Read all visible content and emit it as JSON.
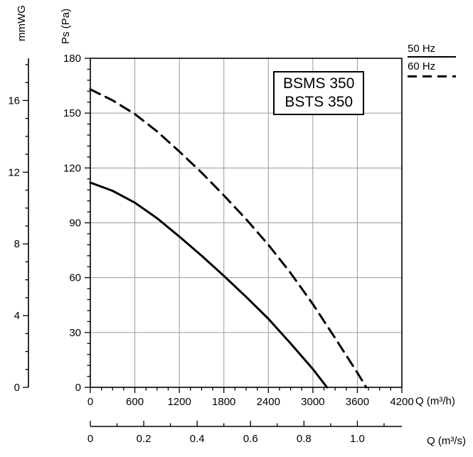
{
  "chart_data": {
    "type": "line",
    "models": [
      "BSMS 350",
      "BSTS 350"
    ],
    "legend": [
      {
        "label": "50 Hz",
        "style": "solid"
      },
      {
        "label": "60 Hz",
        "style": "dashed"
      }
    ],
    "axes": {
      "x_primary": {
        "label": "Q (m³/h)",
        "min": 0,
        "max": 4200,
        "major_ticks": [
          0,
          600,
          1200,
          1800,
          2400,
          3000,
          3600,
          4200
        ],
        "minor_step": 150
      },
      "x_secondary": {
        "label": "Q (m³/s)",
        "major_ticks": [
          0,
          0.2,
          0.4,
          0.6,
          0.8,
          1.0
        ],
        "tick_labels": [
          "0",
          "0.2",
          "0.4",
          "0.6",
          "0.8",
          "1.0"
        ],
        "minor_step": 0.1,
        "minor_max": 1.1,
        "to_primary_factor": 3600
      },
      "y_primary": {
        "label": "Ps (Pa)",
        "min": 0,
        "max": 180,
        "major_ticks": [
          0,
          30,
          60,
          90,
          120,
          150,
          180
        ],
        "minor_step": 6
      },
      "y_secondary": {
        "label": "mmWG",
        "major_ticks": [
          0,
          4,
          8,
          12,
          16
        ],
        "minor_step": 1,
        "minor_max": 18,
        "to_primary_factor": 9.80665
      }
    },
    "series": [
      {
        "name": "50 Hz",
        "line": "solid",
        "points": [
          [
            0,
            112
          ],
          [
            300,
            107.5
          ],
          [
            600,
            101
          ],
          [
            900,
            92.5
          ],
          [
            1200,
            82.5
          ],
          [
            1500,
            72
          ],
          [
            1800,
            61
          ],
          [
            2100,
            49.5
          ],
          [
            2400,
            37.5
          ],
          [
            2700,
            24
          ],
          [
            3000,
            10
          ],
          [
            3190,
            0
          ]
        ]
      },
      {
        "name": "60 Hz",
        "line": "dashed",
        "points": [
          [
            0,
            163
          ],
          [
            300,
            157
          ],
          [
            600,
            149.5
          ],
          [
            900,
            140
          ],
          [
            1200,
            129
          ],
          [
            1500,
            117.5
          ],
          [
            1800,
            105
          ],
          [
            2100,
            92
          ],
          [
            2400,
            78
          ],
          [
            2700,
            62.5
          ],
          [
            3000,
            45.5
          ],
          [
            3300,
            27
          ],
          [
            3600,
            8
          ],
          [
            3720,
            0
          ]
        ]
      }
    ],
    "colors": {
      "curve": "#000000",
      "grid": "#9a9a9a",
      "axis": "#000000",
      "background": "#ffffff"
    }
  }
}
